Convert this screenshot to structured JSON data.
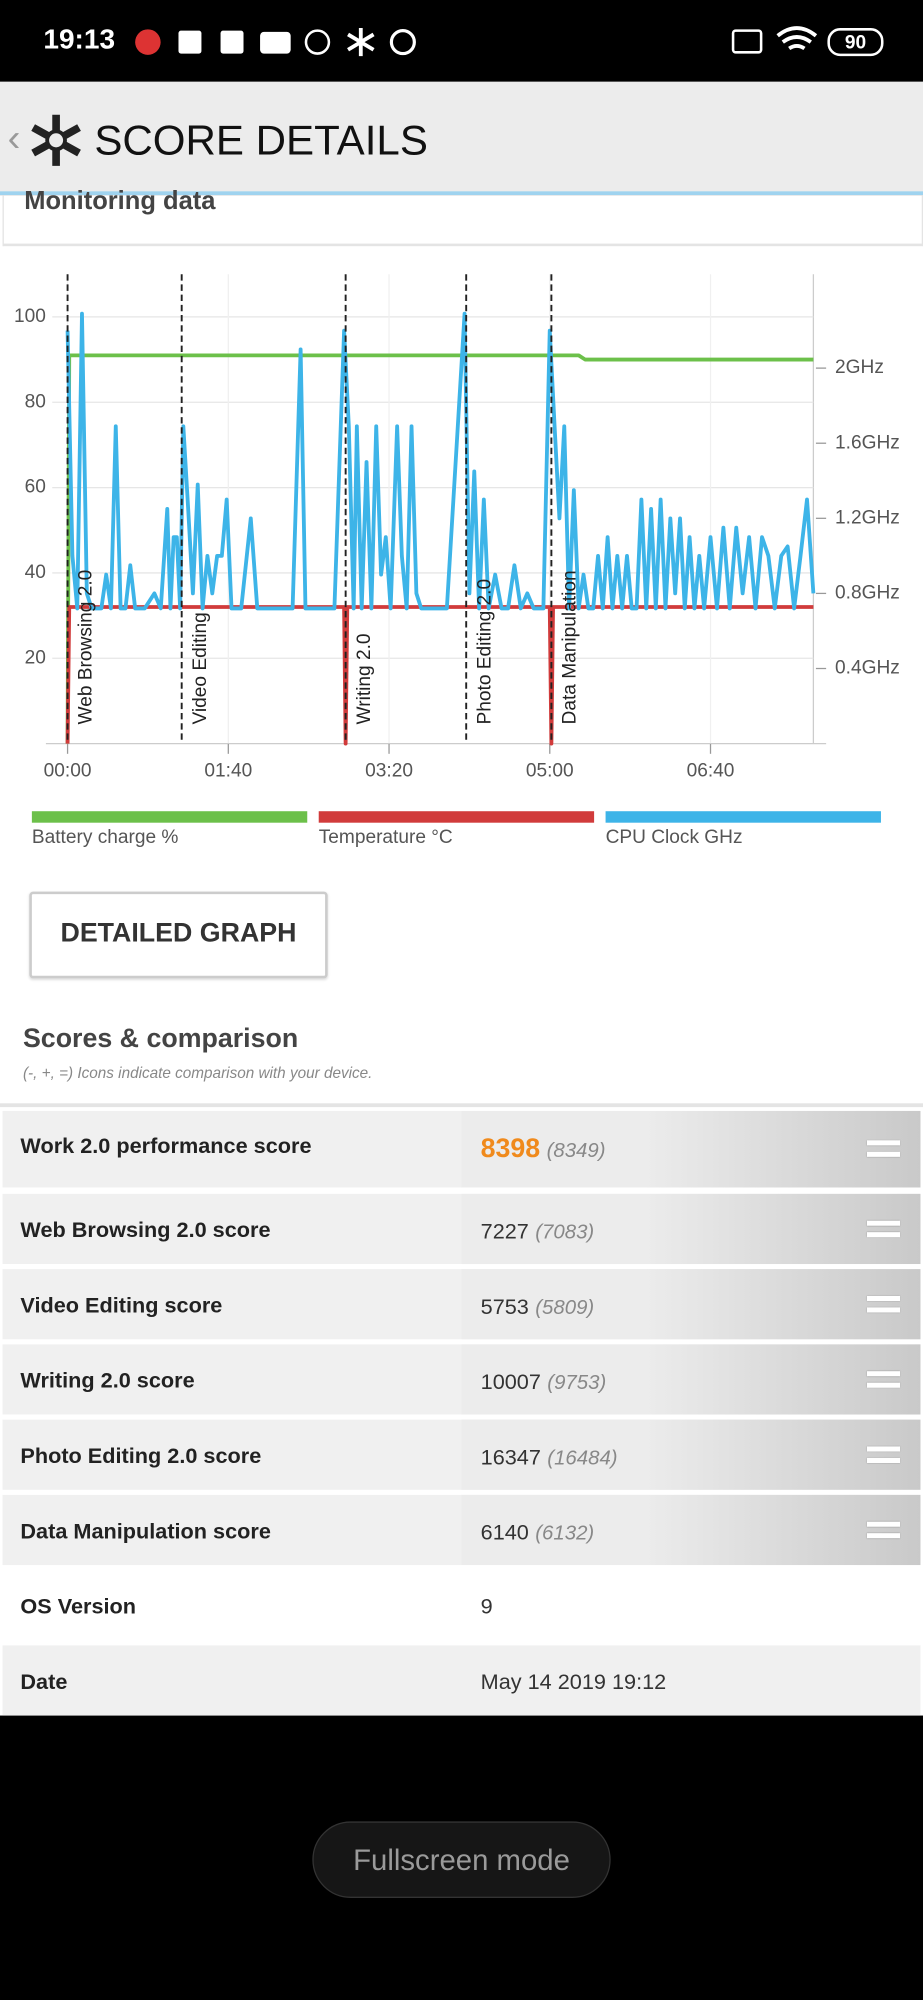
{
  "status_bar": {
    "time": "19:13",
    "battery": "90"
  },
  "header": {
    "title": "SCORE DETAILS"
  },
  "monitoring": {
    "title": "Monitoring data",
    "button": "DETAILED GRAPH"
  },
  "chart_data": {
    "type": "line",
    "xlim": [
      0,
      464
    ],
    "xticks": [
      {
        "value": 0,
        "label": "00:00"
      },
      {
        "value": 100,
        "label": "01:40"
      },
      {
        "value": 200,
        "label": "03:20"
      },
      {
        "value": 300,
        "label": "05:00"
      },
      {
        "value": 400,
        "label": "06:40"
      }
    ],
    "ylim": [
      0,
      110
    ],
    "yticks": [
      20,
      40,
      60,
      80,
      100
    ],
    "y2lim": [
      0,
      2.5
    ],
    "y2ticks": [
      {
        "value": 0.4,
        "label": "0.4GHz"
      },
      {
        "value": 0.8,
        "label": "0.8GHz"
      },
      {
        "value": 1.2,
        "label": "1.2GHz"
      },
      {
        "value": 1.6,
        "label": "1.6GHz"
      },
      {
        "value": 2,
        "label": "2GHz"
      }
    ],
    "grid": true,
    "legend": "bottom",
    "markers": [
      {
        "x": 0,
        "label": "Web Browsing 2.0"
      },
      {
        "x": 71,
        "label": "Video Editing"
      },
      {
        "x": 173,
        "label": "Writing 2.0"
      },
      {
        "x": 248,
        "label": "Photo Editing 2.0"
      },
      {
        "x": 301,
        "label": "Data Manipulation"
      }
    ],
    "series": [
      {
        "name": "Battery charge %",
        "color": "#6cc04a",
        "x": [
          0,
          1,
          318,
          322,
          464
        ],
        "values": [
          0,
          91,
          91,
          90,
          90
        ]
      },
      {
        "name": "Temperature °C",
        "color": "#d13b3b",
        "x": [
          0,
          1,
          172,
          173,
          174,
          300,
          301,
          302,
          464
        ],
        "values": [
          0,
          32,
          32,
          0,
          32,
          32,
          0,
          32,
          32
        ]
      },
      {
        "name": "CPU Clock GHz",
        "color": "#3db4e8",
        "axis": "y2",
        "x": [
          0,
          3,
          6,
          9,
          12,
          15,
          18,
          21,
          24,
          27,
          30,
          33,
          36,
          39,
          42,
          48,
          54,
          58,
          62,
          64,
          66,
          68,
          70,
          72,
          75,
          78,
          81,
          84,
          87,
          90,
          93,
          96,
          99,
          102,
          108,
          114,
          118,
          124,
          130,
          136,
          140,
          145,
          148,
          154,
          160,
          166,
          172,
          175,
          178,
          180,
          183,
          186,
          189,
          192,
          195,
          198,
          201,
          205,
          208,
          211,
          214,
          217,
          220,
          225,
          230,
          236,
          247,
          250,
          253,
          256,
          259,
          262,
          266,
          270,
          274,
          278,
          282,
          286,
          290,
          296,
          300,
          303,
          306,
          309,
          312,
          315,
          318,
          321,
          324,
          327,
          330,
          333,
          336,
          339,
          342,
          345,
          348,
          351,
          354,
          357,
          360,
          363,
          366,
          369,
          372,
          375,
          378,
          381,
          384,
          387,
          390,
          393,
          396,
          400,
          404,
          408,
          412,
          416,
          420,
          424,
          428,
          432,
          436,
          440,
          444,
          448,
          452,
          456,
          460,
          464
        ],
        "values": [
          2.2,
          1.0,
          0.72,
          2.29,
          0.8,
          0.72,
          0.72,
          0.72,
          0.9,
          0.72,
          1.69,
          0.72,
          0.72,
          0.95,
          0.72,
          0.72,
          0.8,
          0.72,
          1.25,
          0.72,
          1.1,
          1.1,
          0.72,
          1.69,
          1.25,
          0.8,
          1.38,
          0.72,
          1.0,
          0.8,
          1.0,
          1.0,
          1.3,
          0.72,
          0.72,
          1.2,
          0.72,
          0.72,
          0.72,
          0.72,
          0.72,
          2.1,
          0.72,
          0.72,
          0.72,
          0.72,
          2.2,
          1.69,
          0.72,
          1.69,
          0.72,
          1.5,
          0.72,
          1.69,
          0.9,
          1.1,
          0.72,
          1.69,
          1.0,
          0.72,
          1.69,
          0.8,
          0.72,
          0.72,
          0.72,
          0.72,
          2.29,
          0.8,
          1.45,
          0.72,
          1.3,
          0.72,
          0.9,
          0.72,
          0.72,
          0.95,
          0.72,
          0.8,
          0.72,
          0.72,
          2.2,
          1.69,
          1.2,
          1.69,
          0.72,
          1.35,
          0.72,
          0.9,
          0.72,
          0.72,
          1.0,
          0.72,
          1.1,
          0.72,
          1.0,
          0.72,
          1.0,
          0.72,
          0.72,
          1.3,
          0.72,
          1.25,
          0.72,
          1.3,
          0.72,
          1.2,
          0.8,
          1.2,
          0.72,
          1.1,
          0.72,
          1.0,
          0.72,
          1.1,
          0.72,
          1.15,
          0.72,
          1.15,
          0.8,
          1.1,
          0.72,
          1.1,
          1.0,
          0.72,
          1.0,
          1.05,
          0.72,
          1.0,
          1.3,
          0.8
        ]
      }
    ]
  },
  "scores": {
    "title": "Scores & comparison",
    "note": "(-, +, =) Icons indicate comparison with your device.",
    "rows": [
      {
        "label": "Work 2.0 performance score",
        "score": "8398",
        "comparison": "(8349)"
      },
      {
        "label": "Web Browsing 2.0 score",
        "score": "7227",
        "comparison": "(7083)"
      },
      {
        "label": "Video Editing score",
        "score": "5753",
        "comparison": "(5809)"
      },
      {
        "label": "Writing 2.0 score",
        "score": "10007",
        "comparison": "(9753)"
      },
      {
        "label": "Photo Editing 2.0 score",
        "score": "16347",
        "comparison": "(16484)"
      },
      {
        "label": "Data Manipulation score",
        "score": "6140",
        "comparison": "(6132)"
      }
    ],
    "info_rows": [
      {
        "label": "OS Version",
        "value": "9"
      },
      {
        "label": "Date",
        "value": "May 14 2019 19:12"
      }
    ]
  },
  "footer": {
    "button": "Fullscreen mode"
  }
}
